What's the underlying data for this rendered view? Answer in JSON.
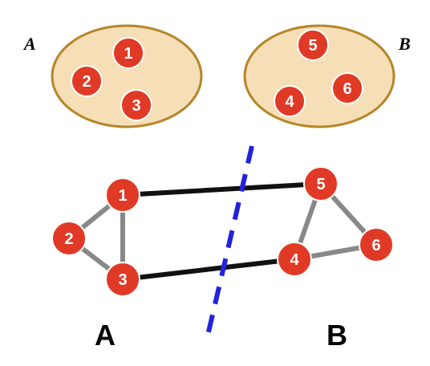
{
  "colors": {
    "node_fill": "#e03a26",
    "node_stroke": "#ffffff",
    "set_fill": "#f6dfb6",
    "set_stroke": "#b5862a",
    "edge_gray": "#888888",
    "edge_black": "#111111",
    "cut_line": "#2222dd"
  },
  "sets": [
    {
      "label": "A",
      "members": [
        "1",
        "2",
        "3"
      ]
    },
    {
      "label": "B",
      "members": [
        "5",
        "4",
        "6"
      ]
    }
  ],
  "graph": {
    "nodes": [
      "1",
      "2",
      "3",
      "4",
      "5",
      "6"
    ],
    "edges": [
      {
        "from": "1",
        "to": "2",
        "kind": "internal"
      },
      {
        "from": "1",
        "to": "3",
        "kind": "internal"
      },
      {
        "from": "2",
        "to": "3",
        "kind": "internal"
      },
      {
        "from": "4",
        "to": "5",
        "kind": "internal"
      },
      {
        "from": "4",
        "to": "6",
        "kind": "internal"
      },
      {
        "from": "5",
        "to": "6",
        "kind": "internal"
      },
      {
        "from": "1",
        "to": "5",
        "kind": "cut"
      },
      {
        "from": "3",
        "to": "4",
        "kind": "cut"
      }
    ],
    "partition_labels": [
      "A",
      "B"
    ]
  }
}
